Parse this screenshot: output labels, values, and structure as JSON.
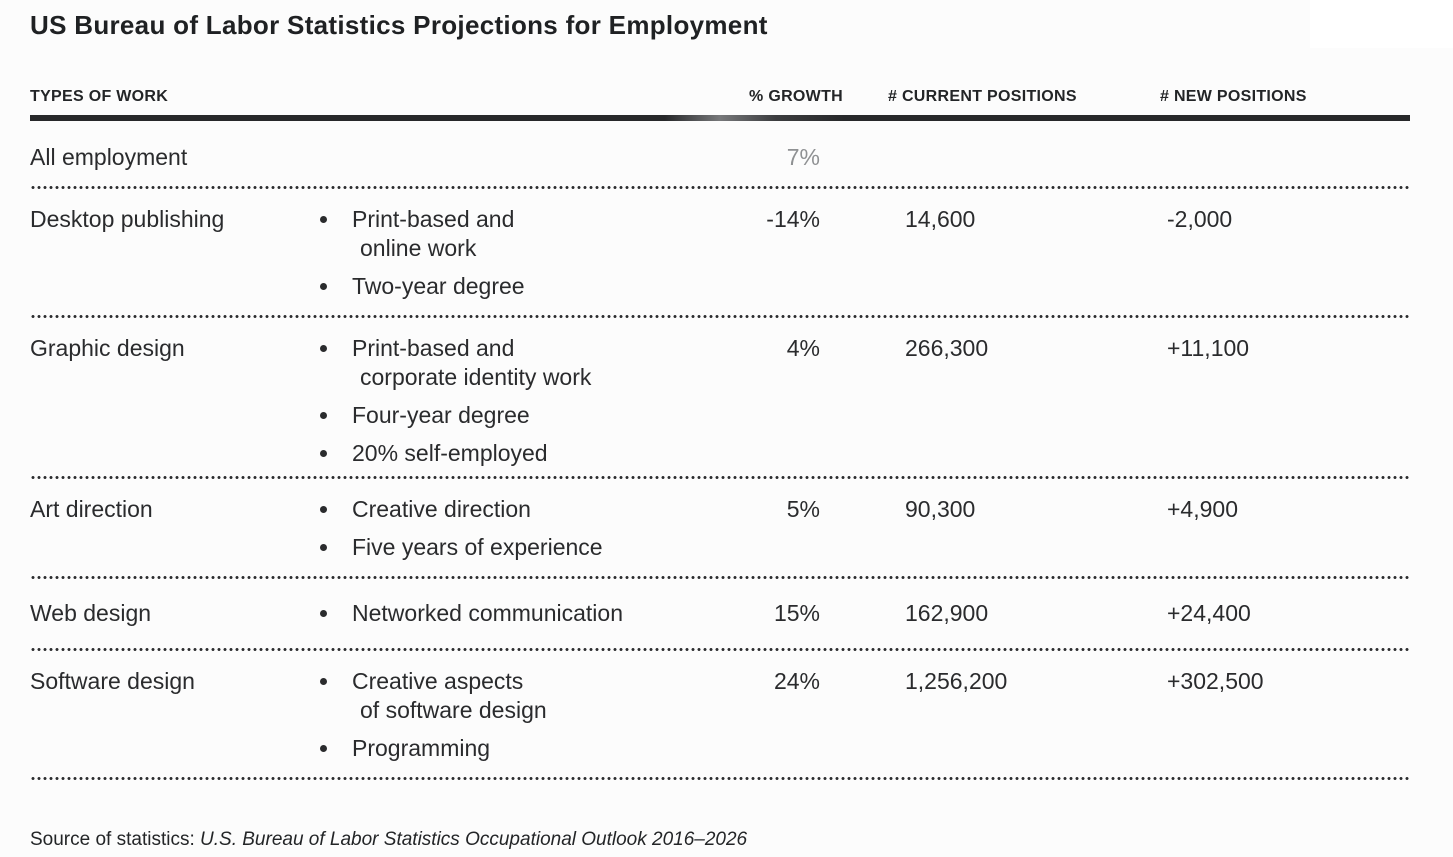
{
  "title": "US Bureau of Labor Statistics Projections for Employment",
  "colors": {
    "text": "#2a2b2d",
    "muted_growth": "#8f9193",
    "rule": "#27282a",
    "background": "#fcfcfc"
  },
  "table": {
    "headers": [
      "TYPES OF WORK",
      "% GROWTH",
      "# CURRENT POSITIONS",
      "# NEW POSITIONS"
    ],
    "rows": [
      {
        "type": "All employment",
        "growth": "7%",
        "current": "",
        "new": "",
        "bullets": []
      },
      {
        "type": "Desktop publishing",
        "growth": "-14%",
        "current": "14,600",
        "new": "-2,000",
        "bullets": [
          {
            "line1": "Print-based and",
            "line2": "online work"
          },
          {
            "line1": "Two-year degree"
          }
        ]
      },
      {
        "type": "Graphic design",
        "growth": "4%",
        "current": "266,300",
        "new": "+11,100",
        "bullets": [
          {
            "line1": "Print-based and",
            "line2": "corporate identity work"
          },
          {
            "line1": "Four-year degree"
          },
          {
            "line1": "20% self-employed"
          }
        ]
      },
      {
        "type": "Art direction",
        "growth": "5%",
        "current": "90,300",
        "new": "+4,900",
        "bullets": [
          {
            "line1": "Creative direction"
          },
          {
            "line1": "Five years of experience"
          }
        ]
      },
      {
        "type": "Web design",
        "growth": "15%",
        "current": "162,900",
        "new": "+24,400",
        "bullets": [
          {
            "line1": "Networked communication"
          }
        ]
      },
      {
        "type": "Software design",
        "growth": "24%",
        "current": "1,256,200",
        "new": "+302,500",
        "bullets": [
          {
            "line1": "Creative aspects",
            "line2": "of software design"
          },
          {
            "line1": "Programming"
          }
        ]
      }
    ]
  },
  "source": {
    "label": "Source of statistics: ",
    "citation": "U.S. Bureau of Labor Statistics Occupational Outlook 2016–2026"
  },
  "chart_data": {
    "type": "table",
    "title": "US Bureau of Labor Statistics Projections for Employment",
    "columns": [
      "TYPES OF WORK",
      "% GROWTH",
      "# CURRENT POSITIONS",
      "# NEW POSITIONS"
    ],
    "rows": [
      {
        "type_of_work": "All employment",
        "notes": [],
        "growth_pct": 7,
        "current_positions": null,
        "new_positions": null
      },
      {
        "type_of_work": "Desktop publishing",
        "notes": [
          "Print-based and online work",
          "Two-year degree"
        ],
        "growth_pct": -14,
        "current_positions": 14600,
        "new_positions": -2000
      },
      {
        "type_of_work": "Graphic design",
        "notes": [
          "Print-based and corporate identity work",
          "Four-year degree",
          "20% self-employed"
        ],
        "growth_pct": 4,
        "current_positions": 266300,
        "new_positions": 11100
      },
      {
        "type_of_work": "Art direction",
        "notes": [
          "Creative direction",
          "Five years of experience"
        ],
        "growth_pct": 5,
        "current_positions": 90300,
        "new_positions": 4900
      },
      {
        "type_of_work": "Web design",
        "notes": [
          "Networked communication"
        ],
        "growth_pct": 15,
        "current_positions": 162900,
        "new_positions": 24400
      },
      {
        "type_of_work": "Software design",
        "notes": [
          "Creative aspects of software design",
          "Programming"
        ],
        "growth_pct": 24,
        "current_positions": 1256200,
        "new_positions": 302500
      }
    ],
    "source": "U.S. Bureau of Labor Statistics Occupational Outlook 2016–2026"
  }
}
